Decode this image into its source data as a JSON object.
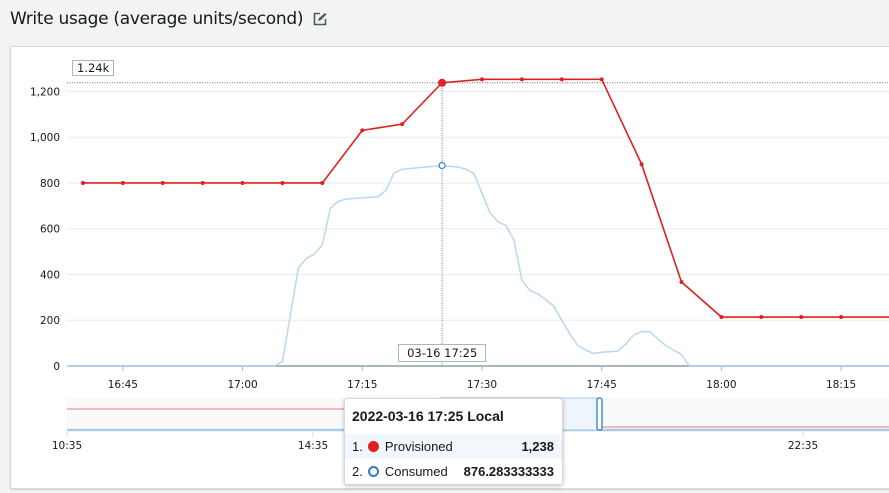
{
  "header": {
    "title": "Write usage (average units/second)",
    "edit_icon": "edit-icon"
  },
  "colors": {
    "provisioned": "#e02020",
    "consumed": "#b9d7ee",
    "consumed_marker": "#2f7ec6",
    "grid": "#eaeded"
  },
  "chart_data": {
    "type": "line",
    "title": "Write usage (average units/second)",
    "ylim": [
      0,
      1250
    ],
    "xlim": [
      "16:38",
      "18:21"
    ],
    "grid": true,
    "y_ticks": [
      "0",
      "200",
      "400",
      "600",
      "800",
      "1,000",
      "1,200"
    ],
    "y_tick_values": [
      0,
      200,
      400,
      600,
      800,
      1000,
      1200
    ],
    "x_ticks": [
      "16:45",
      "17:00",
      "17:15",
      "17:30",
      "17:45",
      "18:00",
      "18:15"
    ],
    "series": [
      {
        "name": "Provisioned",
        "color": "#e02020",
        "markers": true,
        "x": [
          "16:40",
          "16:45",
          "16:50",
          "16:55",
          "17:00",
          "17:05",
          "17:10",
          "17:15",
          "17:20",
          "17:25",
          "17:30",
          "17:35",
          "17:40",
          "17:45",
          "17:50",
          "17:55",
          "18:00",
          "18:05",
          "18:10",
          "18:15",
          "18:21"
        ],
        "values": [
          800,
          800,
          800,
          800,
          800,
          800,
          800,
          1030,
          1057,
          1238,
          1253,
          1253,
          1253,
          1253,
          882,
          367,
          214,
          214,
          214,
          214,
          214
        ]
      },
      {
        "name": "Consumed",
        "color": "#b9d7ee",
        "markers": false,
        "x": [
          "16:38",
          "17:04",
          "17:05",
          "17:07",
          "17:08",
          "17:09",
          "17:10",
          "17:11",
          "17:12",
          "17:13",
          "17:15",
          "17:17",
          "17:18",
          "17:19",
          "17:20",
          "17:25",
          "17:27",
          "17:28",
          "17:29",
          "17:31",
          "17:32",
          "17:33",
          "17:34",
          "17:35",
          "17:36",
          "17:37",
          "17:38",
          "17:39",
          "17:41",
          "17:42",
          "17:43",
          "17:44",
          "17:45",
          "17:47",
          "17:48",
          "17:49",
          "17:50",
          "17:51",
          "17:52",
          "17:53",
          "17:55",
          "17:56",
          "18:21"
        ],
        "values": [
          0,
          0,
          20,
          430,
          470,
          490,
          530,
          690,
          720,
          730,
          735,
          740,
          770,
          845,
          860,
          876.283333333,
          870,
          860,
          840,
          670,
          630,
          615,
          550,
          375,
          330,
          315,
          290,
          260,
          140,
          90,
          70,
          55,
          60,
          65,
          95,
          135,
          150,
          150,
          120,
          90,
          50,
          0,
          0
        ]
      }
    ],
    "hover": {
      "x": "17:25",
      "x_label": "03-16 17:25",
      "y_label": "1.24k",
      "y_value": 1238
    },
    "overview": {
      "x_ticks": [
        "10:35",
        "14:35",
        "22:35"
      ]
    },
    "tooltip": {
      "title": "2022-03-16 17:25 Local",
      "rows": [
        {
          "index": "1.",
          "name": "Provisioned",
          "value": "1,238"
        },
        {
          "index": "2.",
          "name": "Consumed",
          "value": "876.283333333"
        }
      ]
    }
  }
}
